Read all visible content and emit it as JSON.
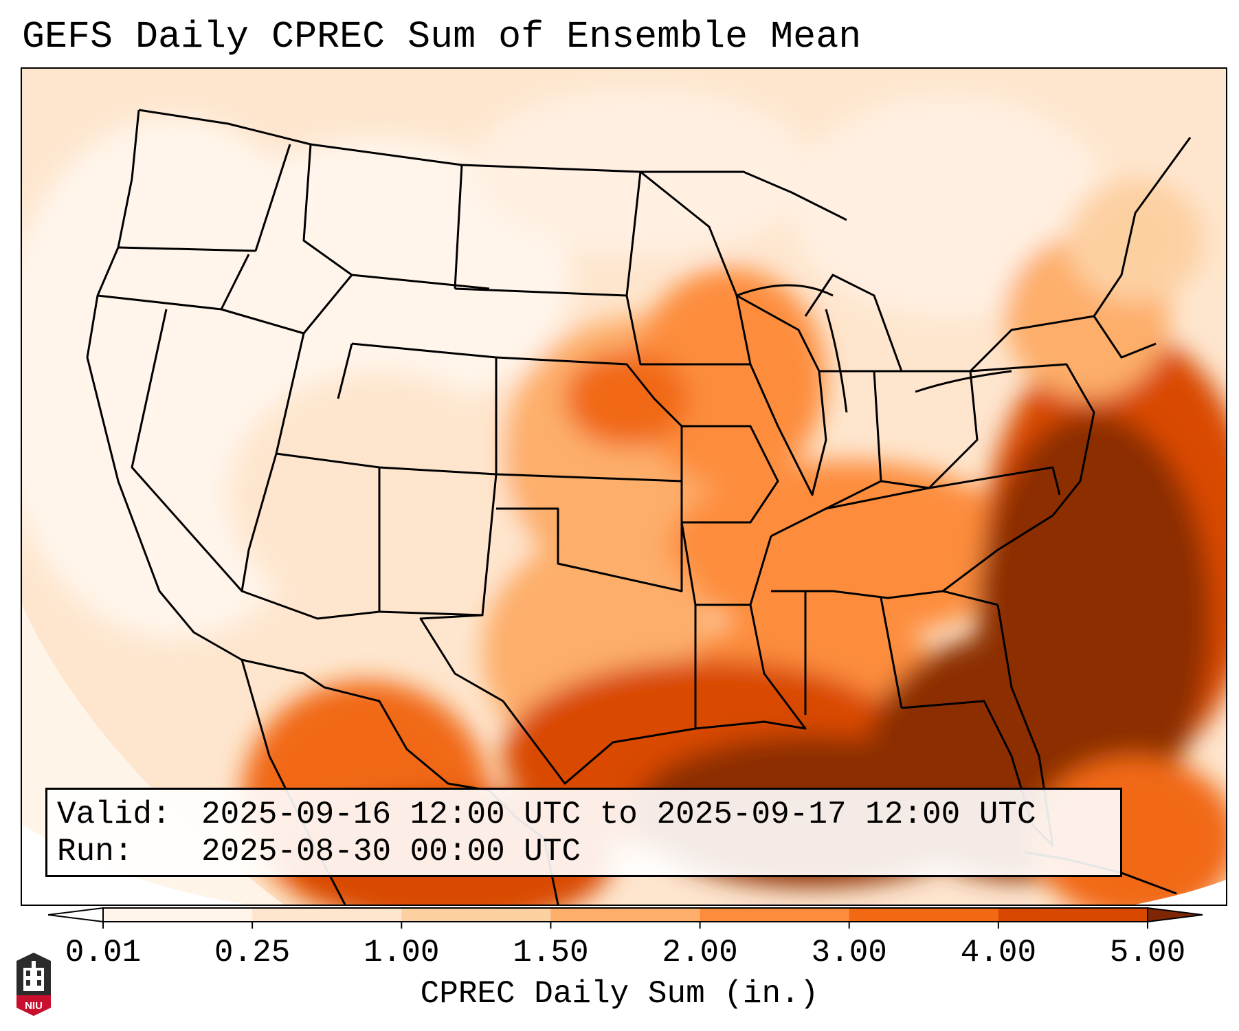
{
  "title": "GEFS Daily CPREC Sum of Ensemble Mean",
  "info": {
    "valid_label": "Valid:",
    "valid_value": "2025-09-16 12:00 UTC to 2025-09-17 12:00 UTC",
    "run_label": "Run:",
    "run_value": "2025-08-30 00:00 UTC"
  },
  "colorbar": {
    "label": "CPREC Daily Sum (in.)",
    "ticks": [
      "0.01",
      "0.25",
      "1.00",
      "1.50",
      "2.00",
      "3.00",
      "4.00",
      "5.00"
    ],
    "colors": [
      "#fff5eb",
      "#fee6ce",
      "#fdd0a2",
      "#fdae6b",
      "#fd8d3c",
      "#f16913",
      "#d94801",
      "#8c2d04"
    ],
    "under_color": "#ffffff",
    "over_color": "#7f2704"
  },
  "logo": {
    "text": "NIU",
    "icon": "university-tower-icon"
  },
  "map": {
    "projection": "lambert-conformal",
    "region": "CONUS",
    "variable": "CPREC",
    "colors": {
      "border": "#000000",
      "ocean_light": "#fde6d3",
      "heavy": "#8c2d04"
    }
  }
}
